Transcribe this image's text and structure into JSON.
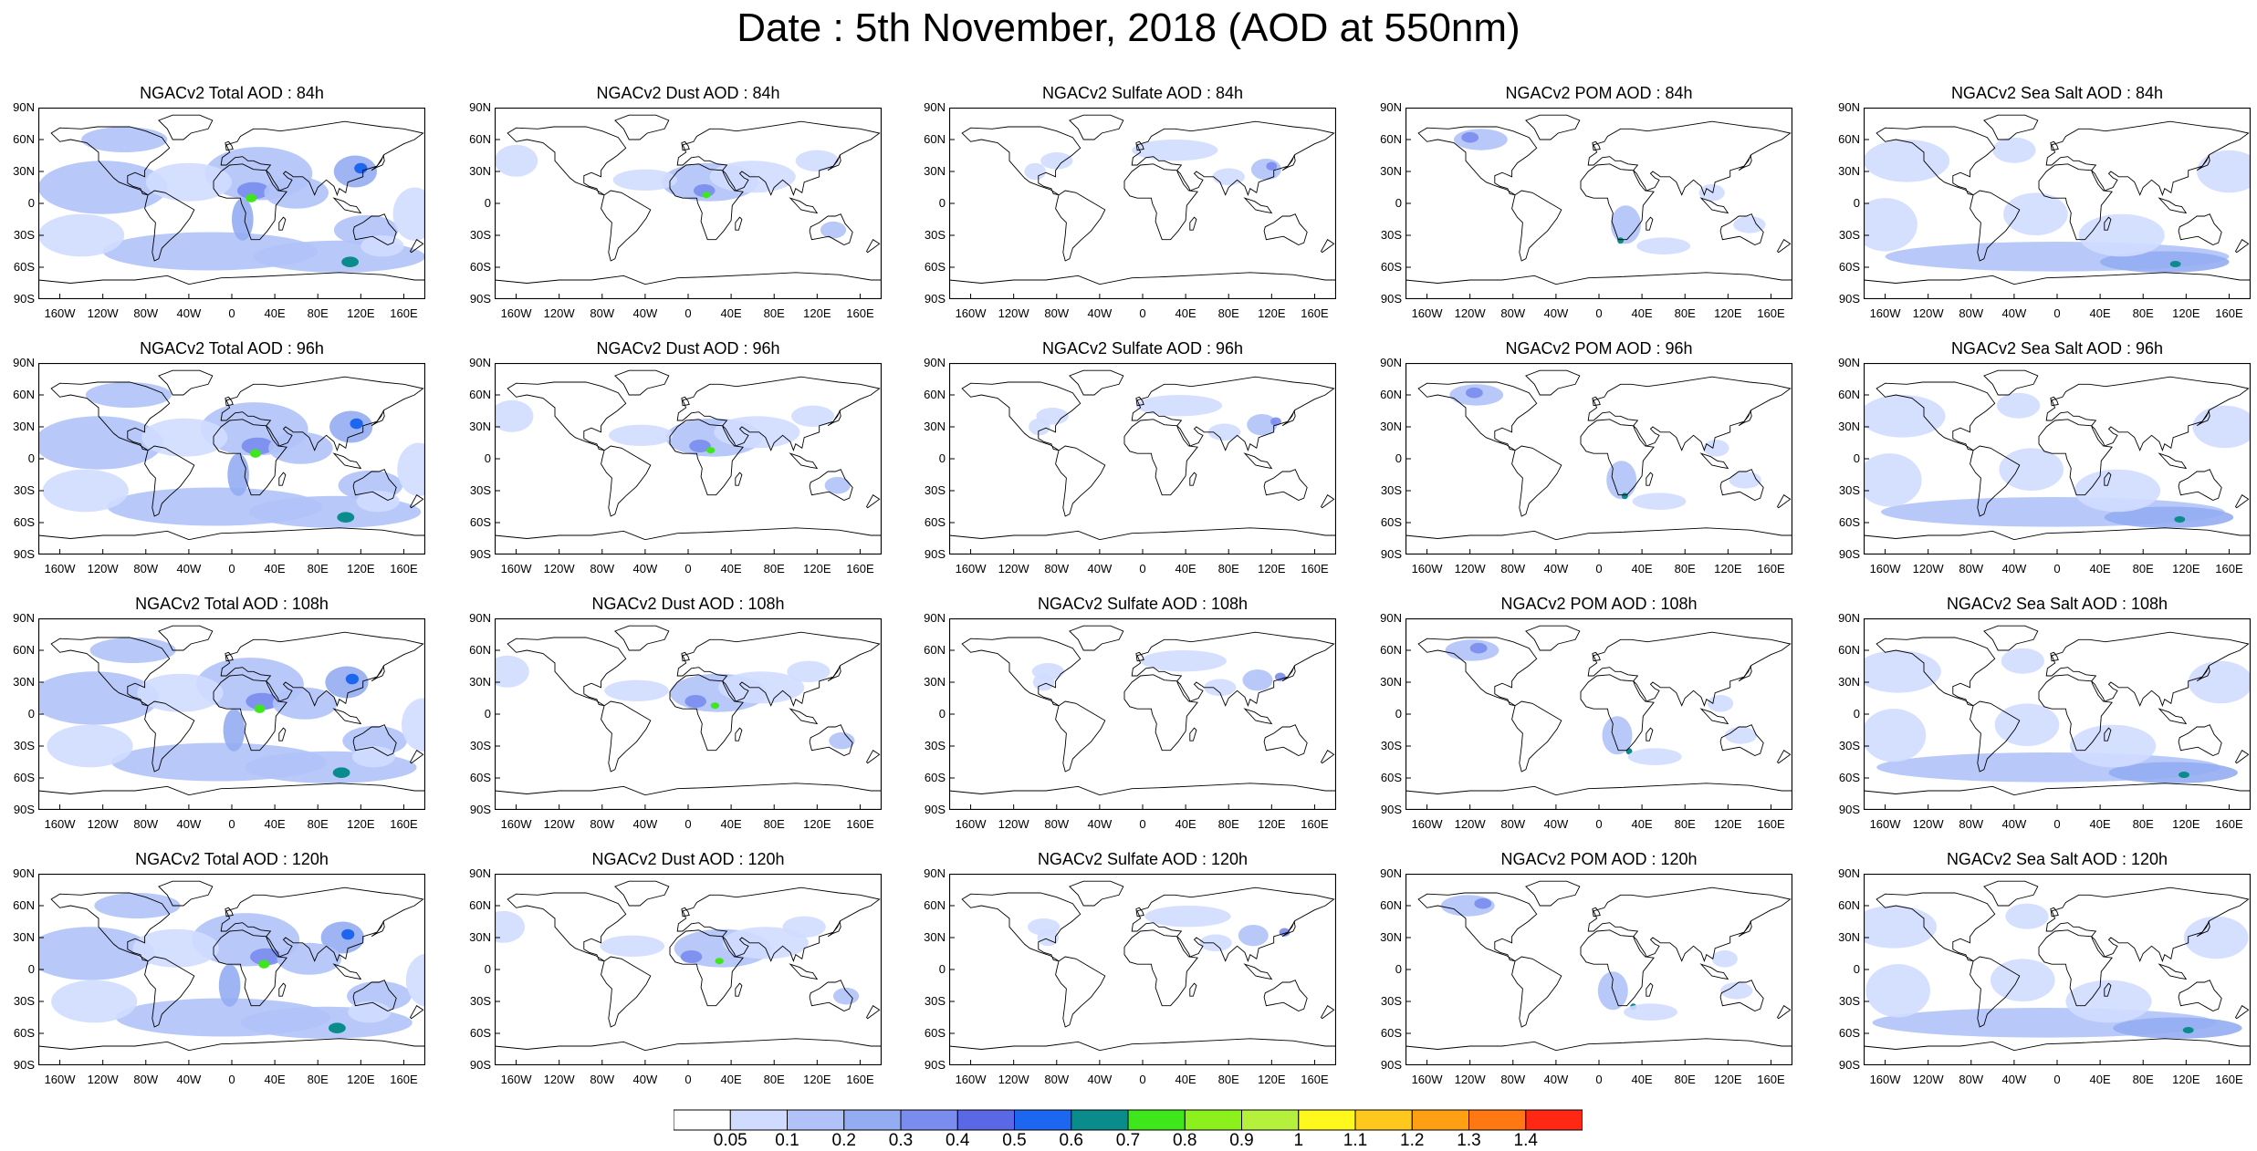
{
  "title": "Date : 5th November, 2018 (AOD at 550nm)",
  "panels": [
    [
      "NGACv2 Total AOD : 84h",
      "NGACv2 Dust AOD : 84h",
      "NGACv2 Sulfate AOD : 84h",
      "NGACv2 POM AOD : 84h",
      "NGACv2 Sea Salt AOD : 84h"
    ],
    [
      "NGACv2 Total AOD : 96h",
      "NGACv2 Dust AOD : 96h",
      "NGACv2 Sulfate AOD : 96h",
      "NGACv2 POM AOD : 96h",
      "NGACv2 Sea Salt AOD : 96h"
    ],
    [
      "NGACv2 Total AOD : 108h",
      "NGACv2 Dust AOD : 108h",
      "NGACv2 Sulfate AOD : 108h",
      "NGACv2 POM AOD : 108h",
      "NGACv2 Sea Salt AOD : 108h"
    ],
    [
      "NGACv2 Total AOD : 120h",
      "NGACv2 Dust AOD : 120h",
      "NGACv2 Sulfate AOD : 120h",
      "NGACv2 POM AOD : 120h",
      "NGACv2 Sea Salt  AOD : 120h"
    ]
  ],
  "lat_ticks": [
    "90N",
    "60N",
    "30N",
    "0",
    "30S",
    "60S",
    "90S"
  ],
  "lon_ticks": [
    "160W",
    "120W",
    "80W",
    "40W",
    "0",
    "40E",
    "80E",
    "120E",
    "160E"
  ],
  "colorbar": {
    "labels": [
      "0.05",
      "0.1",
      "0.2",
      "0.3",
      "0.4",
      "0.5",
      "0.6",
      "0.7",
      "0.8",
      "0.9",
      "1",
      "1.1",
      "1.2",
      "1.3",
      "1.4"
    ],
    "colors": [
      "#ffffff",
      "#d0dcff",
      "#b0c2f8",
      "#94acf2",
      "#7a8cee",
      "#5a68e6",
      "#1c66f0",
      "#0a8c8c",
      "#3ee61c",
      "#8cf01c",
      "#b4f03c",
      "#fff81c",
      "#ffc81c",
      "#ffa014",
      "#ff7814",
      "#ff2814"
    ]
  },
  "chart_data": {
    "type": "map",
    "variable": "AOD at 550nm",
    "date": "5th November, 2018",
    "model": "NGACv2",
    "species": [
      "Total",
      "Dust",
      "Sulfate",
      "POM",
      "Sea Salt"
    ],
    "forecast_hours": [
      "84h",
      "96h",
      "108h",
      "120h"
    ],
    "lat_range": [
      "90S",
      "90N"
    ],
    "lon_range": [
      "180W",
      "180E"
    ]
  }
}
